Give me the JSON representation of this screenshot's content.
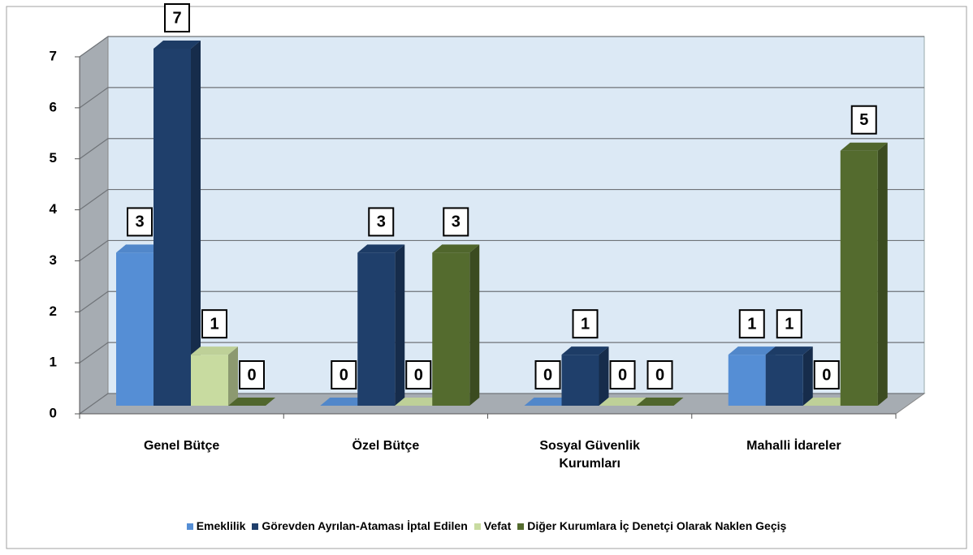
{
  "chart_data": {
    "type": "bar3d",
    "categories": [
      "Genel Bütçe",
      "Özel Bütçe",
      "Sosyal Güvenlik Kurumları",
      "Mahalli İdareler"
    ],
    "series": [
      {
        "name": "Emeklilik",
        "color": "#558ed5",
        "values": [
          3,
          0,
          0,
          1
        ]
      },
      {
        "name": "Görevden Ayrılan-Ataması İptal Edilen",
        "color": "#1f3f6b",
        "values": [
          7,
          3,
          1,
          1
        ]
      },
      {
        "name": "Vefat",
        "color": "#c8dba0",
        "values": [
          1,
          0,
          0,
          0
        ]
      },
      {
        "name": "Diğer Kurumlara İç Denetçi Olarak Naklen Geçiş",
        "color": "#546b2e",
        "values": [
          0,
          3,
          0,
          5
        ]
      }
    ],
    "ylim": [
      0,
      7
    ],
    "yticks": [
      0,
      1,
      2,
      3,
      4,
      5,
      6,
      7
    ],
    "grid": true,
    "legend": "bottom"
  }
}
